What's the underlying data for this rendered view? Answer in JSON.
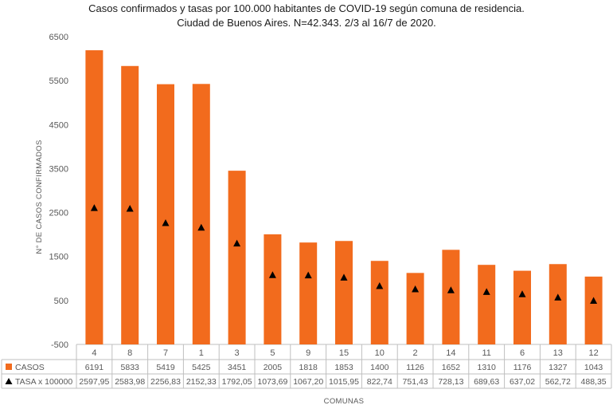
{
  "chart_data": {
    "type": "bar",
    "title": "Casos confirmados y tasas por 100.000 habitantes de COVID-19 según comuna de residencia.",
    "subtitle": "Ciudad de Buenos Aires. N=42.343. 2/3 al 16/7 de 2020.",
    "ylabel": "N° DE CASOS CONFIRMADOS",
    "xlabel": "COMUNAS",
    "ylim": [
      -500,
      6500
    ],
    "yticks": [
      "6500",
      "5500",
      "4500",
      "3500",
      "2500",
      "1500",
      "500",
      "-500"
    ],
    "grid": false,
    "categories": [
      "4",
      "8",
      "7",
      "1",
      "3",
      "5",
      "9",
      "15",
      "10",
      "2",
      "14",
      "11",
      "6",
      "13",
      "12"
    ],
    "series": [
      {
        "name": "CASOS",
        "type": "bar",
        "color": "#f26b1d",
        "values": [
          6191,
          5833,
          5419,
          5425,
          3451,
          2005,
          1818,
          1853,
          1400,
          1126,
          1652,
          1310,
          1176,
          1327,
          1043
        ],
        "labels": [
          "6191",
          "5833",
          "5419",
          "5425",
          "3451",
          "2005",
          "1818",
          "1853",
          "1400",
          "1126",
          "1652",
          "1310",
          "1176",
          "1327",
          "1043"
        ]
      },
      {
        "name": "TASA x 100000",
        "type": "scatter",
        "marker": "triangle",
        "color": "#000000",
        "values": [
          2597.95,
          2583.98,
          2256.83,
          2152.33,
          1792.05,
          1073.69,
          1067.2,
          1015.95,
          822.74,
          751.43,
          728.13,
          689.63,
          637.02,
          562.72,
          488.35
        ],
        "labels": [
          "2597,95",
          "2583,98",
          "2256,83",
          "2152,33",
          "1792,05",
          "1073,69",
          "1067,20",
          "1015,95",
          "822,74",
          "751,43",
          "728,13",
          "689,63",
          "637,02",
          "562,72",
          "488,35"
        ]
      }
    ]
  }
}
